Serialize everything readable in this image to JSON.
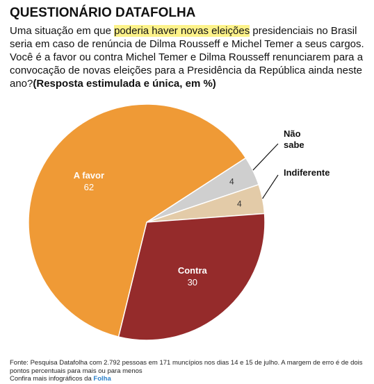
{
  "header": {
    "title": "QUESTIONÁRIO DATAFOLHA",
    "question_before": "Uma situação em que ",
    "question_highlight": "poderia haver novas eleições",
    "question_after": " presidenciais no Brasil seria em caso de renúncia de Dilma Rousseff e Michel Temer a seus cargos. Você é a favor ou contra Michel Temer e Dilma Rousseff renunciarem para a convocação de novas eleições para a Presidência da República ainda neste ano?",
    "question_note": "(Resposta estimulada e única, em %)"
  },
  "chart_data": {
    "type": "pie",
    "unit": "%",
    "slices": [
      {
        "label": "Não sabe",
        "value": 4,
        "color": "#cfcfcf",
        "label_position": "outside",
        "label_lines": [
          "Não",
          "sabe"
        ]
      },
      {
        "label": "Indiferente",
        "value": 4,
        "color": "#e3cba8",
        "label_position": "outside",
        "label_lines": [
          "Indiferente"
        ]
      },
      {
        "label": "Contra",
        "value": 30,
        "color": "#952b2b",
        "label_position": "inside"
      },
      {
        "label": "A favor",
        "value": 62,
        "color": "#ef9a36",
        "label_position": "inside"
      }
    ]
  },
  "footer": {
    "source": "Fonte: Pesquisa Datafolha com 2.792 pessoas em 171 muncípios nos dias 14 e 15 de julho. A margem de erro é de dois pontos percentuais para mais ou para menos",
    "more_prefix": "Confira mais infográficos da ",
    "more_link": "Folha"
  }
}
